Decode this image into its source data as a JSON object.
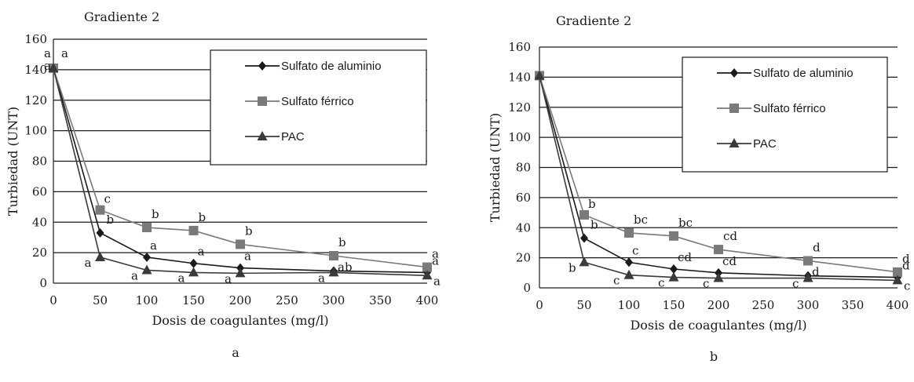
{
  "chart_data": [
    {
      "type": "line",
      "panel_label": "a",
      "title": "Gradiente 2",
      "xlabel": "Dosis de coagulantes (mg/l)",
      "ylabel": "Turbiedad (UNT)",
      "x": [
        0,
        50,
        100,
        150,
        200,
        300,
        400
      ],
      "xticks": [
        "0",
        "50",
        "100",
        "150",
        "200",
        "250",
        "300",
        "350",
        "400"
      ],
      "yticks": [
        "0",
        "20",
        "40",
        "60",
        "80",
        "100",
        "120",
        "140",
        "160"
      ],
      "xlim": [
        0,
        400
      ],
      "ylim": [
        0,
        160
      ],
      "grid": "horizontal",
      "legend_position": "top-right",
      "series": [
        {
          "name": "Sulfato de aluminio",
          "marker": "diamond",
          "color": "#1a1a1a",
          "values": [
            141,
            33,
            17,
            13,
            10,
            8,
            7
          ],
          "labels": [
            "a",
            "b",
            "a",
            "a",
            "a",
            "ab",
            "a"
          ]
        },
        {
          "name": "Sulfato férrico",
          "marker": "square",
          "color": "#7a7a7a",
          "values": [
            141,
            48,
            36.5,
            34.5,
            25.5,
            18,
            10.5
          ],
          "labels": [
            "a",
            "c",
            "b",
            "b",
            "b",
            "b",
            "a"
          ]
        },
        {
          "name": "PAC",
          "marker": "triangle",
          "color": "#3a3a3a",
          "values": [
            141,
            17,
            8.5,
            7,
            6.5,
            7,
            5
          ],
          "labels": [
            "a",
            "a",
            "a",
            "a",
            "a",
            "a",
            "a"
          ]
        }
      ]
    },
    {
      "type": "line",
      "panel_label": "b",
      "title": "Gradiente 2",
      "xlabel": "Dosis de coagulantes (mg/l)",
      "ylabel": "Turbiedad (UNT)",
      "x": [
        0,
        50,
        100,
        150,
        200,
        300,
        400
      ],
      "xticks": [
        "0",
        "50",
        "100",
        "150",
        "200",
        "250",
        "300",
        "350",
        "400"
      ],
      "yticks": [
        "0",
        "20",
        "40",
        "60",
        "80",
        "100",
        "120",
        "140",
        "160"
      ],
      "xlim": [
        0,
        400
      ],
      "ylim": [
        0,
        160
      ],
      "grid": "horizontal",
      "legend_position": "top-right",
      "series": [
        {
          "name": "Sulfato de aluminio",
          "marker": "diamond",
          "color": "#1a1a1a",
          "values": [
            141,
            33,
            17,
            12.5,
            10,
            8,
            7
          ],
          "labels": [
            "",
            "b",
            "c",
            "cd",
            "cd",
            "d",
            "d"
          ]
        },
        {
          "name": "Sulfato férrico",
          "marker": "square",
          "color": "#7a7a7a",
          "values": [
            141,
            48.5,
            36.5,
            34.5,
            25.5,
            18,
            10.5
          ],
          "labels": [
            "",
            "b",
            "bc",
            "bc",
            "cd",
            "d",
            "d"
          ]
        },
        {
          "name": "PAC",
          "marker": "triangle",
          "color": "#3a3a3a",
          "values": [
            141,
            17,
            8.5,
            7,
            6.5,
            6.5,
            5
          ],
          "labels": [
            "",
            "b",
            "c",
            "c",
            "c",
            "c",
            "c"
          ]
        }
      ]
    }
  ]
}
